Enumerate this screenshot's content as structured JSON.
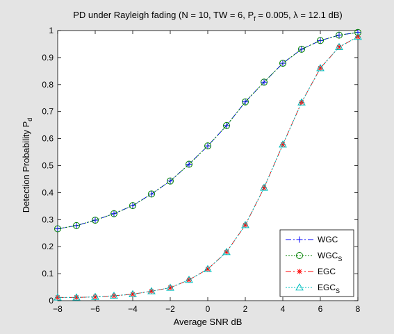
{
  "chart_data": {
    "type": "line",
    "title_main": "PD under Rayleigh fading (N = 10, TW = 6, P",
    "title_sub": "f",
    "title_rest": " = 0.005, λ = 12.1 dB)",
    "xlabel": "Average SNR dB",
    "ylabel_main": "Detection Probability P",
    "ylabel_sub": "d",
    "xlim": [
      -8,
      8
    ],
    "ylim": [
      0,
      1
    ],
    "xticks": [
      "-8",
      "-6",
      "-4",
      "-2",
      "0",
      "2",
      "4",
      "6",
      "8"
    ],
    "yticks": [
      "0",
      "0.1",
      "0.2",
      "0.3",
      "0.4",
      "0.5",
      "0.6",
      "0.7",
      "0.8",
      "0.9",
      "1"
    ],
    "grid": false,
    "legend_position": "bottom-right",
    "x": [
      -8,
      -7,
      -6,
      -5,
      -4,
      -3,
      -2,
      -1,
      0,
      1,
      2,
      3,
      4,
      5,
      6,
      7,
      8
    ],
    "series": [
      {
        "name": "WGC",
        "name_sub": "",
        "color": "#0000ff",
        "dash": "8,3,2,3",
        "marker": "plus",
        "values": [
          0.266,
          0.278,
          0.298,
          0.322,
          0.352,
          0.395,
          0.443,
          0.505,
          0.573,
          0.648,
          0.736,
          0.809,
          0.879,
          0.931,
          0.963,
          0.983,
          0.993
        ]
      },
      {
        "name": "WGC",
        "name_sub": "S",
        "color": "#008000",
        "dash": "2,2",
        "marker": "circle",
        "values": [
          0.266,
          0.278,
          0.298,
          0.322,
          0.352,
          0.395,
          0.443,
          0.505,
          0.573,
          0.648,
          0.736,
          0.809,
          0.879,
          0.931,
          0.963,
          0.983,
          0.993
        ]
      },
      {
        "name": "EGC",
        "name_sub": "",
        "color": "#ff0000",
        "dash": "8,3,2,3",
        "marker": "star",
        "values": [
          0.012,
          0.012,
          0.014,
          0.018,
          0.024,
          0.035,
          0.048,
          0.077,
          0.117,
          0.18,
          0.28,
          0.418,
          0.578,
          0.734,
          0.861,
          0.939,
          0.977
        ]
      },
      {
        "name": "EGC",
        "name_sub": "S",
        "color": "#00bfbf",
        "dash": "2,2",
        "marker": "triangle",
        "values": [
          0.012,
          0.012,
          0.014,
          0.018,
          0.024,
          0.035,
          0.048,
          0.077,
          0.117,
          0.18,
          0.28,
          0.418,
          0.578,
          0.734,
          0.861,
          0.939,
          0.977
        ]
      }
    ]
  }
}
